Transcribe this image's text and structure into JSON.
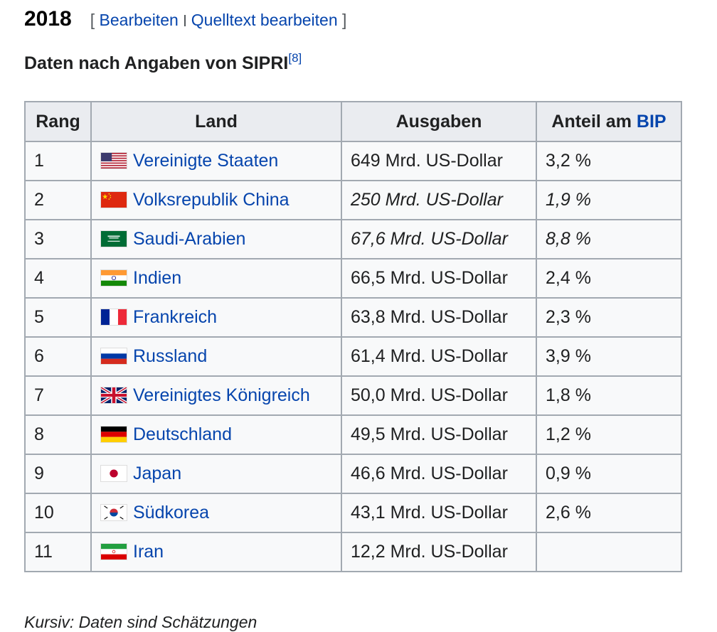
{
  "heading": {
    "year": "2018",
    "bracket_open": "[",
    "edit_label": "Bearbeiten",
    "source_edit_label": "Quelltext bearbeiten",
    "bracket_close": "]"
  },
  "subheading": {
    "text": "Daten nach Angaben von SIPRI",
    "ref": "[8]"
  },
  "table": {
    "headers": {
      "rang": "Rang",
      "land": "Land",
      "ausgaben": "Ausgaben",
      "bip_prefix": "Anteil am",
      "bip_link": "BIP"
    },
    "rows": [
      {
        "rang": "1",
        "flag": "usa-flag-icon",
        "land": "Vereinigte Staaten",
        "ausgaben": "649 Mrd. US-Dollar",
        "bip": "3,2 %"
      },
      {
        "rang": "2",
        "flag": "china-flag-icon",
        "land": "Volksrepublik China",
        "ausgaben": "250 Mrd. US-Dollar",
        "bip": "1,9 %"
      },
      {
        "rang": "3",
        "flag": "saudi-arabia-flag-icon",
        "land": "Saudi-Arabien",
        "ausgaben": "67,6 Mrd. US-Dollar",
        "bip": "8,8 %"
      },
      {
        "rang": "4",
        "flag": "india-flag-icon",
        "land": "Indien",
        "ausgaben": "66,5 Mrd. US-Dollar",
        "bip": "2,4 %"
      },
      {
        "rang": "5",
        "flag": "france-flag-icon",
        "land": "Frankreich",
        "ausgaben": "63,8 Mrd. US-Dollar",
        "bip": "2,3 %"
      },
      {
        "rang": "6",
        "flag": "russia-flag-icon",
        "land": "Russland",
        "ausgaben": "61,4 Mrd. US-Dollar",
        "bip": "3,9 %"
      },
      {
        "rang": "7",
        "flag": "uk-flag-icon",
        "land": "Vereinigtes Königreich",
        "ausgaben": "50,0 Mrd. US-Dollar",
        "bip": "1,8 %"
      },
      {
        "rang": "8",
        "flag": "germany-flag-icon",
        "land": "Deutschland",
        "ausgaben": "49,5 Mrd. US-Dollar",
        "bip": "1,2 %"
      },
      {
        "rang": "9",
        "flag": "japan-flag-icon",
        "land": "Japan",
        "ausgaben": "46,6 Mrd. US-Dollar",
        "bip": "0,9 %"
      },
      {
        "rang": "10",
        "flag": "south-korea-flag-icon",
        "land": "Südkorea",
        "ausgaben": "43,1 Mrd. US-Dollar",
        "bip": "2,6 %"
      },
      {
        "rang": "11",
        "flag": "iran-flag-icon",
        "land": "Iran",
        "ausgaben": "12,2 Mrd. US-Dollar",
        "bip": ""
      }
    ]
  },
  "footer": {
    "text": "Kursiv: Daten sind Schätzungen"
  },
  "colors": {
    "link": "#0645ad",
    "header_bg": "#eaecf0",
    "cell_bg": "#f8f9fa",
    "border": "#a2a9b1"
  }
}
